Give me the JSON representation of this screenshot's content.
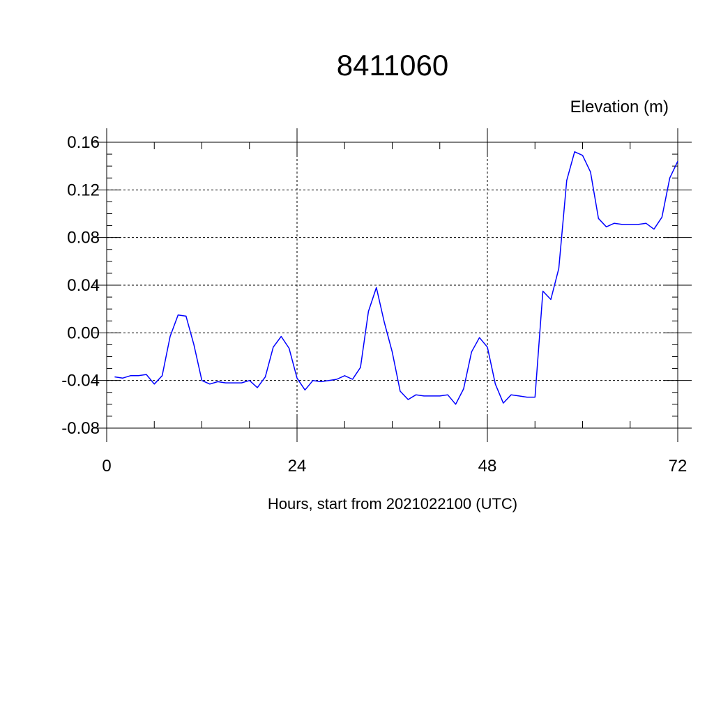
{
  "chart_data": {
    "type": "line",
    "title": "8411060",
    "unit_label": "Elevation (m)",
    "xlabel": "Hours, start from 2021022100 (UTC)",
    "ylabel": "",
    "xlim": [
      0,
      72
    ],
    "ylim": [
      -0.08,
      0.16
    ],
    "x_ticks": [
      0,
      24,
      48,
      72
    ],
    "x_tick_labels": [
      "0",
      "24",
      "48",
      "72"
    ],
    "y_ticks": [
      -0.08,
      -0.04,
      0.0,
      0.04,
      0.08,
      0.12,
      0.16
    ],
    "y_tick_labels": [
      "-0.08",
      "-0.04",
      "0.00",
      "0.04",
      "0.08",
      "0.12",
      "0.16"
    ],
    "grid": true,
    "line_color": "#0000ff",
    "series": [
      {
        "x": [
          1,
          2,
          3,
          4,
          5,
          6,
          7,
          8,
          9,
          10,
          11,
          12,
          13,
          14,
          15,
          16,
          17,
          18,
          19,
          20,
          21,
          22,
          23,
          24,
          25,
          26,
          27,
          28,
          29,
          30,
          31,
          32,
          33,
          34,
          35,
          36,
          37,
          38,
          39,
          40,
          41,
          42,
          43,
          44,
          45,
          46,
          47,
          48,
          49,
          50,
          51,
          52,
          53,
          54,
          55,
          56,
          57,
          58,
          59,
          60,
          61,
          62,
          63,
          64,
          65,
          66,
          67,
          68,
          69,
          70,
          71,
          72
        ],
        "values": [
          -0.037,
          -0.038,
          -0.036,
          -0.036,
          -0.035,
          -0.043,
          -0.036,
          -0.003,
          0.015,
          0.014,
          -0.01,
          -0.04,
          -0.043,
          -0.041,
          -0.042,
          -0.042,
          -0.042,
          -0.04,
          -0.046,
          -0.037,
          -0.012,
          -0.003,
          -0.013,
          -0.038,
          -0.048,
          -0.04,
          -0.041,
          -0.04,
          -0.039,
          -0.036,
          -0.039,
          -0.029,
          0.018,
          0.038,
          0.009,
          -0.016,
          -0.049,
          -0.056,
          -0.052,
          -0.053,
          -0.053,
          -0.053,
          -0.052,
          -0.06,
          -0.047,
          -0.016,
          -0.004,
          -0.012,
          -0.043,
          -0.059,
          -0.052,
          -0.053,
          -0.054,
          -0.054,
          0.035,
          0.028,
          0.054,
          0.128,
          0.152,
          0.149,
          0.135,
          0.096,
          0.089,
          0.092,
          0.091,
          0.091,
          0.091,
          0.092,
          0.087,
          0.097,
          0.13,
          0.144
        ]
      }
    ]
  }
}
